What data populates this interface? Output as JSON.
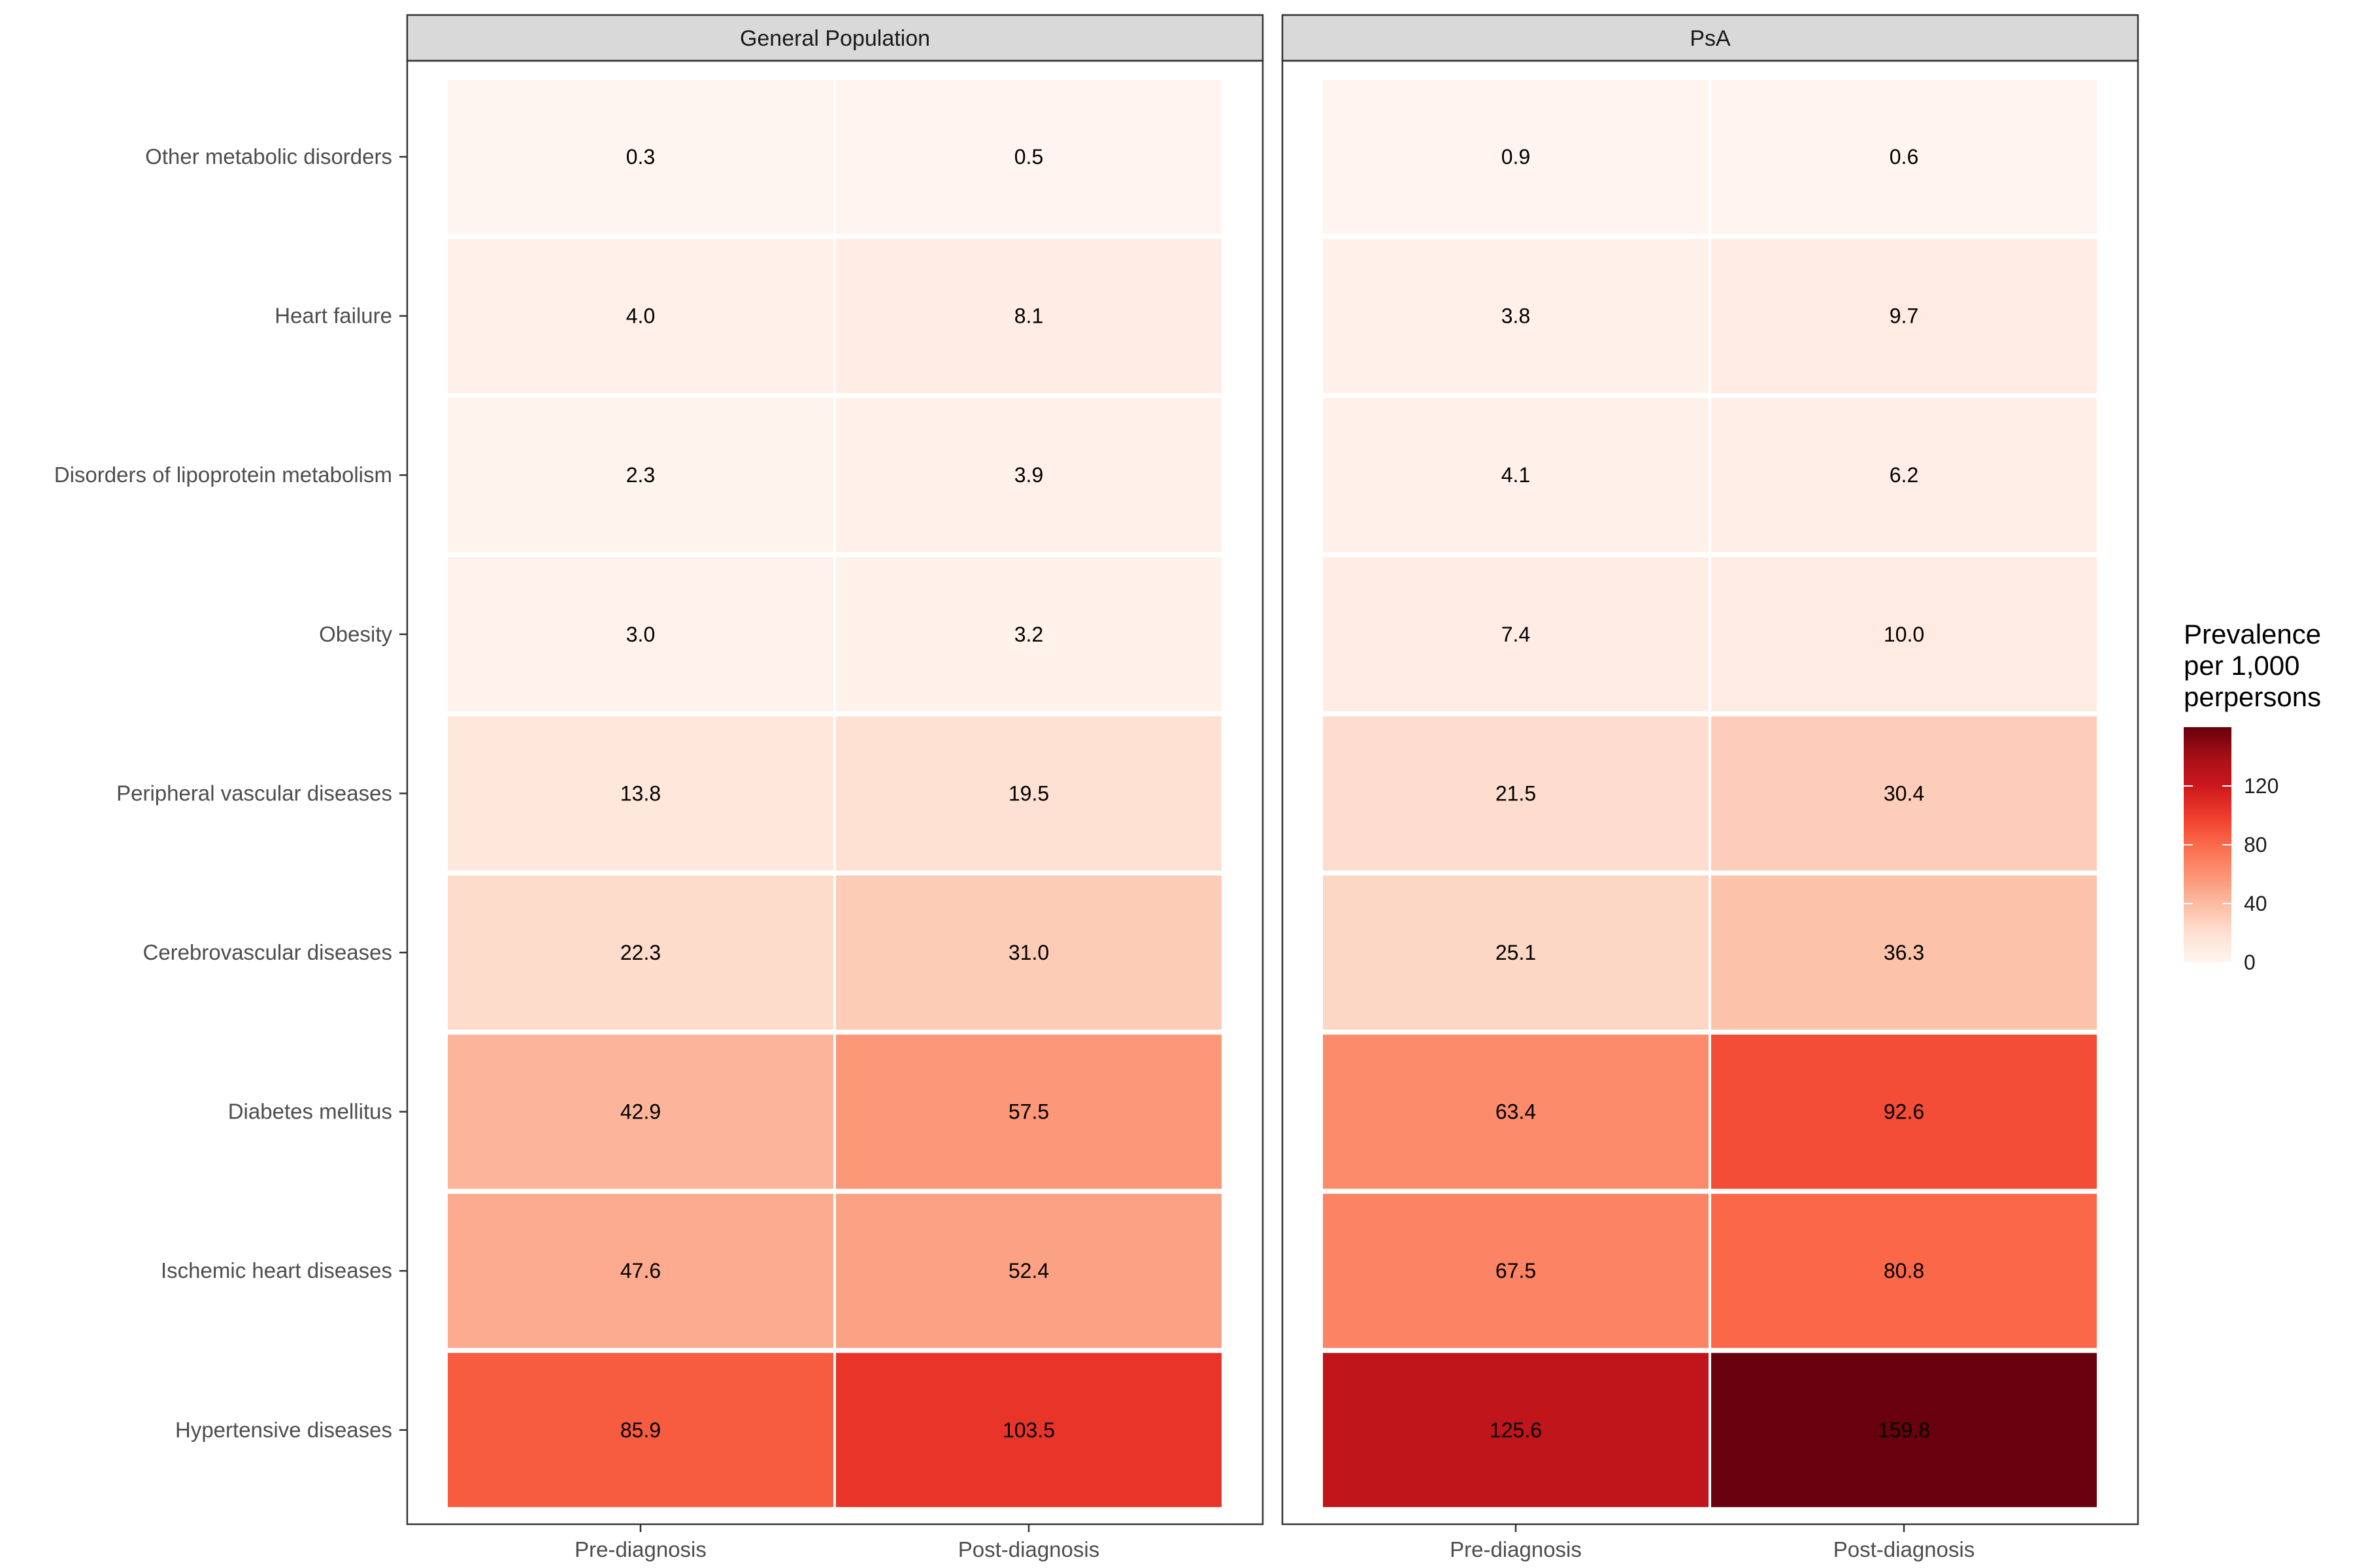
{
  "chart_data": {
    "type": "heatmap",
    "rows": [
      "Other metabolic disorders",
      "Heart failure",
      "Disorders of lipoprotein metabolism",
      "Obesity",
      "Peripheral vascular diseases",
      "Cerebrovascular diseases",
      "Diabetes mellitus",
      "Ischemic heart diseases",
      "Hypertensive diseases"
    ],
    "columns": [
      "Pre-diagnosis",
      "Post-diagnosis"
    ],
    "panels": [
      {
        "name": "General Population",
        "values": [
          [
            0.3,
            0.5
          ],
          [
            4.0,
            8.1
          ],
          [
            2.3,
            3.9
          ],
          [
            3.0,
            3.2
          ],
          [
            13.8,
            19.5
          ],
          [
            22.3,
            31.0
          ],
          [
            42.9,
            57.5
          ],
          [
            47.6,
            52.4
          ],
          [
            85.9,
            103.5
          ]
        ],
        "labels": [
          [
            "0.3",
            "0.5"
          ],
          [
            "4.0",
            "8.1"
          ],
          [
            "2.3",
            "3.9"
          ],
          [
            "3.0",
            "3.2"
          ],
          [
            "13.8",
            "19.5"
          ],
          [
            "22.3",
            "31.0"
          ],
          [
            "42.9",
            "57.5"
          ],
          [
            "47.6",
            "52.4"
          ],
          [
            "85.9",
            "103.5"
          ]
        ]
      },
      {
        "name": "PsA",
        "values": [
          [
            0.9,
            0.6
          ],
          [
            3.8,
            9.7
          ],
          [
            4.1,
            6.2
          ],
          [
            7.4,
            10.0
          ],
          [
            21.5,
            30.4
          ],
          [
            25.1,
            36.3
          ],
          [
            63.4,
            92.6
          ],
          [
            67.5,
            80.8
          ],
          [
            125.6,
            159.8
          ]
        ],
        "labels": [
          [
            "0.9",
            "0.6"
          ],
          [
            "3.8",
            "9.7"
          ],
          [
            "4.1",
            "6.2"
          ],
          [
            "7.4",
            "10.0"
          ],
          [
            "21.5",
            "30.4"
          ],
          [
            "25.1",
            "36.3"
          ],
          [
            "63.4",
            "92.6"
          ],
          [
            "67.5",
            "80.8"
          ],
          [
            "125.6",
            "159.8"
          ]
        ]
      }
    ],
    "legend": {
      "title": [
        "Prevalence",
        "per 1,000",
        "perpersons"
      ],
      "ticks": [
        0,
        40,
        80,
        120
      ],
      "tick_labels": [
        "0",
        "40",
        "80",
        "120"
      ],
      "range": [
        0,
        160
      ],
      "placement": "right"
    },
    "color_scale": {
      "name": "Reds",
      "stops": [
        "#fff5f0",
        "#fee0d2",
        "#fcbba1",
        "#fc9272",
        "#fb6a4a",
        "#ef3b2c",
        "#cb181d",
        "#a50f15",
        "#67000d"
      ]
    },
    "strip_color": "#d9d9d9",
    "panel_border_color": "#333333"
  }
}
